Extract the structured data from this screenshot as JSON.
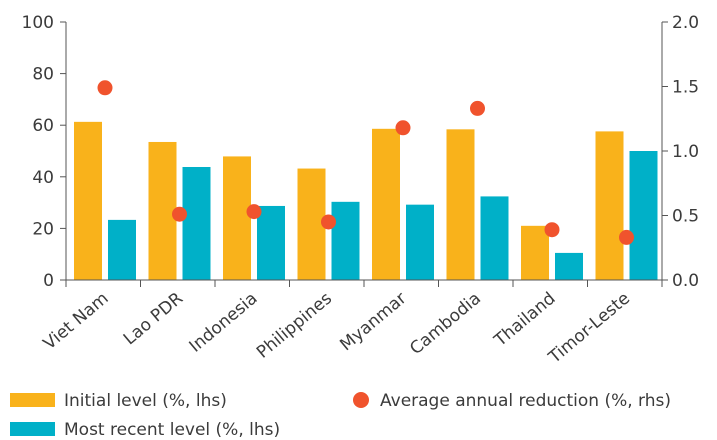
{
  "chart_data": {
    "type": "bar",
    "categories": [
      "Viet Nam",
      "Lao PDR",
      "Indonesia",
      "Philippines",
      "Myanmar",
      "Cambodia",
      "Thailand",
      "Timor-Leste"
    ],
    "series": [
      {
        "name": "Initial level (%, lhs)",
        "kind": "bar",
        "axis": "left",
        "color": "#F9B21B",
        "values": [
          61.3,
          53.5,
          47.9,
          43.2,
          58.6,
          58.4,
          21.0,
          57.6
        ]
      },
      {
        "name": "Most recent level (%, lhs)",
        "kind": "bar",
        "axis": "left",
        "color": "#00B0C8",
        "values": [
          23.3,
          43.8,
          28.7,
          30.3,
          29.2,
          32.4,
          10.5,
          50.0
        ]
      },
      {
        "name": "Average annual reduction (%, rhs)",
        "kind": "scatter",
        "axis": "right",
        "color": "#F0532D",
        "values": [
          1.49,
          0.51,
          0.53,
          0.45,
          1.18,
          1.33,
          0.39,
          0.33
        ]
      }
    ],
    "ylim_left": [
      0,
      100
    ],
    "ylim_right": [
      0,
      2.0
    ],
    "yticks_left": [
      "0",
      "20",
      "40",
      "60",
      "80",
      "100"
    ],
    "yticks_right": [
      "0.0",
      "0.5",
      "1.0",
      "1.5",
      "2.0"
    ],
    "grid": false,
    "legend_position": "bottom",
    "colors": {
      "axis": "#555555",
      "text": "#3b3b3b"
    }
  }
}
